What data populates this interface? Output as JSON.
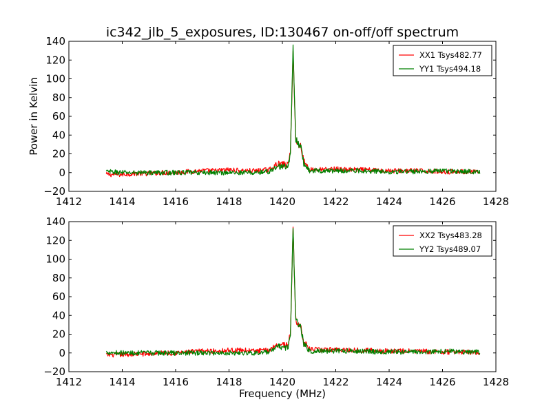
{
  "title": "ic342_jlb_5_exposures, ID:130467 on-off/off spectrum",
  "ylabel": "Power in Kelvin",
  "xlabel": "Frequency (MHz)",
  "colors": {
    "XX": "#ff0000",
    "YY": "#008000"
  },
  "chart_data": [
    {
      "type": "line",
      "title": "ic342_jlb_5_exposures, ID:130467 on-off/off spectrum",
      "ylabel": "Power in Kelvin",
      "xlabel": "",
      "xlim": [
        1412,
        1428
      ],
      "ylim": [
        -20,
        140
      ],
      "xticks": [
        "1412",
        "1414",
        "1416",
        "1418",
        "1420",
        "1422",
        "1424",
        "1426",
        "1428"
      ],
      "yticks": [
        "−20",
        "0",
        "20",
        "40",
        "60",
        "80",
        "100",
        "120",
        "140"
      ],
      "legend_position": "top-right",
      "series": [
        {
          "name": "XX1 Tsys482.77",
          "color": "#ff0000",
          "baseline_offset": -1.5,
          "x": [
            1413.4,
            1414.0,
            1414.5,
            1415.0,
            1415.5,
            1416.0,
            1416.5,
            1417.0,
            1417.5,
            1418.0,
            1418.5,
            1419.0,
            1419.5,
            1419.8,
            1420.0,
            1420.2,
            1420.3,
            1420.4,
            1420.5,
            1420.6,
            1420.7,
            1420.8,
            1421.0,
            1421.5,
            1422.0,
            1422.5,
            1423.0,
            1424.0,
            1425.0,
            1426.0,
            1427.0,
            1427.4
          ],
          "y": [
            -2,
            -2,
            -1,
            -1,
            0,
            0,
            1,
            2,
            2,
            3,
            2,
            2,
            3,
            9,
            9,
            8,
            20,
            130,
            35,
            30,
            28,
            12,
            4,
            3,
            4,
            3,
            3,
            2,
            2,
            1,
            1,
            0
          ]
        },
        {
          "name": "YY1 Tsys494.18",
          "color": "#008000",
          "baseline_offset": 1.5,
          "x": [
            1413.4,
            1414.0,
            1414.5,
            1415.0,
            1415.5,
            1416.0,
            1416.5,
            1417.0,
            1417.5,
            1418.0,
            1418.5,
            1419.0,
            1419.5,
            1419.8,
            1420.0,
            1420.2,
            1420.3,
            1420.4,
            1420.5,
            1420.6,
            1420.7,
            1420.8,
            1421.0,
            1421.5,
            1422.0,
            1422.5,
            1423.0,
            1424.0,
            1425.0,
            1426.0,
            1427.0,
            1427.4
          ],
          "y": [
            1,
            0,
            0,
            0,
            0,
            0,
            0,
            0,
            0,
            0,
            0,
            0,
            1,
            6,
            7,
            5,
            18,
            133,
            36,
            31,
            26,
            10,
            2,
            2,
            2,
            2,
            2,
            1,
            1,
            2,
            1,
            1
          ]
        }
      ]
    },
    {
      "type": "line",
      "title": "",
      "ylabel": "",
      "xlabel": "Frequency (MHz)",
      "xlim": [
        1412,
        1428
      ],
      "ylim": [
        -20,
        140
      ],
      "xticks": [
        "1412",
        "1414",
        "1416",
        "1418",
        "1420",
        "1422",
        "1424",
        "1426",
        "1428"
      ],
      "yticks": [
        "−20",
        "0",
        "20",
        "40",
        "60",
        "80",
        "100",
        "120",
        "140"
      ],
      "legend_position": "top-right",
      "series": [
        {
          "name": "XX2 Tsys483.28",
          "color": "#ff0000",
          "baseline_offset": -1.5,
          "x": [
            1413.4,
            1414.0,
            1414.5,
            1415.0,
            1415.5,
            1416.0,
            1416.5,
            1417.0,
            1417.5,
            1418.0,
            1418.5,
            1419.0,
            1419.5,
            1419.8,
            1420.0,
            1420.2,
            1420.3,
            1420.4,
            1420.5,
            1420.6,
            1420.7,
            1420.8,
            1421.0,
            1421.5,
            1422.0,
            1422.5,
            1423.0,
            1424.0,
            1425.0,
            1426.0,
            1427.0,
            1427.4
          ],
          "y": [
            -2,
            -2,
            -1,
            -1,
            0,
            0,
            1,
            2,
            2,
            3,
            3,
            2,
            3,
            9,
            9,
            8,
            20,
            131,
            36,
            30,
            27,
            12,
            4,
            3,
            4,
            3,
            3,
            2,
            2,
            1,
            1,
            0
          ]
        },
        {
          "name": "YY2 Tsys489.07",
          "color": "#008000",
          "baseline_offset": 1.5,
          "x": [
            1413.4,
            1414.0,
            1414.5,
            1415.0,
            1415.5,
            1416.0,
            1416.5,
            1417.0,
            1417.5,
            1418.0,
            1418.5,
            1419.0,
            1419.5,
            1419.8,
            1420.0,
            1420.2,
            1420.3,
            1420.4,
            1420.5,
            1420.6,
            1420.7,
            1420.8,
            1421.0,
            1421.5,
            1422.0,
            1422.5,
            1423.0,
            1424.0,
            1425.0,
            1426.0,
            1427.0,
            1427.4
          ],
          "y": [
            1,
            0,
            0,
            0,
            0,
            0,
            0,
            0,
            0,
            0,
            0,
            0,
            1,
            6,
            7,
            5,
            18,
            133,
            36,
            31,
            26,
            10,
            2,
            2,
            2,
            2,
            2,
            1,
            1,
            2,
            1,
            1
          ]
        }
      ]
    }
  ]
}
